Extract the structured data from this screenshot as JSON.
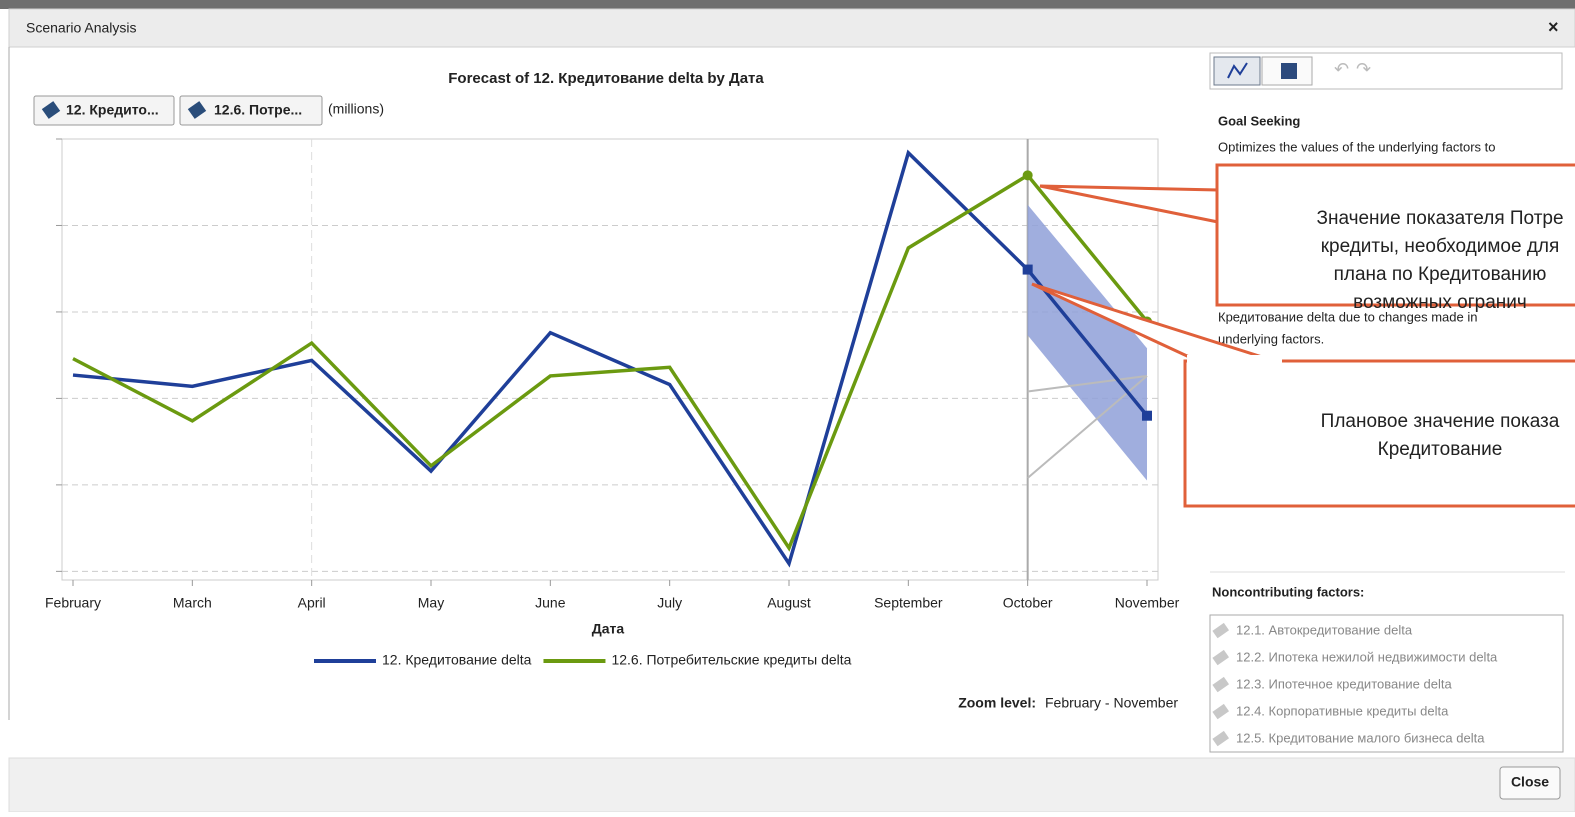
{
  "window": {
    "title": "Scenario Analysis",
    "close_icon": "×"
  },
  "toolbar": {
    "buttons": [
      "12. Кредито...",
      "12.6. Потре..."
    ],
    "units": "(millions)"
  },
  "chart_data": {
    "type": "line",
    "title": "Forecast of 12. Кредитование delta by Дата",
    "x_label": "Дата",
    "categories": [
      "February",
      "March",
      "April",
      "May",
      "June",
      "July",
      "August",
      "September",
      "October",
      "November"
    ],
    "series": [
      {
        "name": "12. Кредитование delta",
        "color": "#1f3f99",
        "marker": "square",
        "values": [
          2.27,
          2.14,
          2.44,
          1.16,
          2.76,
          2.16,
          0.09,
          4.84,
          3.49,
          1.8
        ]
      },
      {
        "name": "12.6. Потребительские кредиты delta",
        "color": "#6b9a10",
        "marker": "circle",
        "values": [
          2.46,
          1.74,
          2.64,
          1.22,
          2.26,
          2.36,
          0.27,
          3.74,
          4.58,
          2.89
        ]
      }
    ],
    "band": {
      "color": "#8fa0d8",
      "lower": [
        null,
        null,
        null,
        null,
        null,
        null,
        null,
        null,
        2.73,
        1.05
      ],
      "upper": [
        null,
        null,
        null,
        null,
        null,
        null,
        null,
        null,
        4.24,
        2.58
      ]
    },
    "extra_lines": [
      {
        "color": "#bbbbbb",
        "values": [
          null,
          null,
          null,
          null,
          null,
          null,
          null,
          null,
          2.08,
          2.26
        ]
      },
      {
        "color": "#bbbbbb",
        "values": [
          null,
          null,
          null,
          null,
          null,
          null,
          null,
          null,
          1.08,
          2.26
        ]
      }
    ],
    "ylim": [
      -0.1,
      5.0
    ],
    "yticks": [
      0,
      1,
      2,
      3,
      4,
      5
    ],
    "grid": true,
    "marker_from_index": 8,
    "zoom_label": "Zoom level:",
    "zoom_value": "February - November"
  },
  "annotations": [
    {
      "lines": [
        "Значение показателя Потре",
        "кредиты, необходимое для",
        "плана по Кредитованию",
        "возможных огранич"
      ]
    },
    {
      "lines": [
        "Плановое значение показа",
        "Кредитование"
      ]
    }
  ],
  "side_panel": {
    "heading": "Goal Seeking",
    "text_lines": [
      "Optimizes the values of the underlying factors to",
      "Кредитование delta due to changes made in",
      "underlying factors."
    ],
    "noncontributing_title": "Noncontributing factors:",
    "factors": [
      "12.1. Автокредитование delta",
      "12.2. Ипотека нежилой недвижимости delta",
      "12.3. Ипотечное кредитование delta",
      "12.4. Корпоративные кредиты delta",
      "12.5. Кредитование малого бизнеса delta"
    ]
  },
  "footer": {
    "close_button": "Close"
  }
}
